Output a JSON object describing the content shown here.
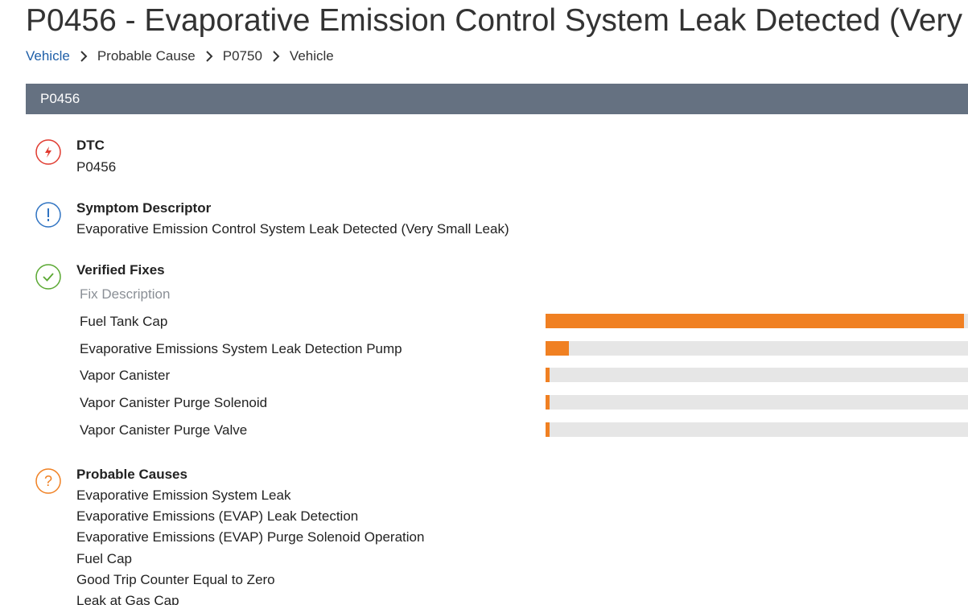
{
  "header": {
    "title": "P0456 - Evaporative Emission Control System Leak Detected (Very"
  },
  "breadcrumb": [
    "Vehicle",
    "Probable Cause",
    "P0750",
    "Vehicle"
  ],
  "panel": {
    "title": "P0456"
  },
  "dtc": {
    "label": "DTC",
    "value": "P0456"
  },
  "symptom": {
    "label": "Symptom Descriptor",
    "value": "Evaporative Emission Control System Leak Detected (Very Small Leak)"
  },
  "fixes": {
    "label": "Verified Fixes",
    "column_header": "Fix Description",
    "items": [
      {
        "name": "Fuel Tank Cap",
        "value": 99
      },
      {
        "name": "Evaporative Emissions System Leak Detection Pump",
        "value": 5.5
      },
      {
        "name": "Vapor Canister",
        "value": 1
      },
      {
        "name": "Vapor Canister Purge Solenoid",
        "value": 1
      },
      {
        "name": "Vapor Canister Purge Valve",
        "value": 1
      }
    ]
  },
  "causes": {
    "label": "Probable Causes",
    "items": [
      "Evaporative Emission System Leak",
      "Evaporative Emissions (EVAP) Leak Detection",
      "Evaporative Emissions (EVAP) Purge Solenoid Operation",
      "Fuel Cap",
      "Good Trip Counter Equal to Zero",
      "Leak at Gas Cap"
    ]
  }
}
